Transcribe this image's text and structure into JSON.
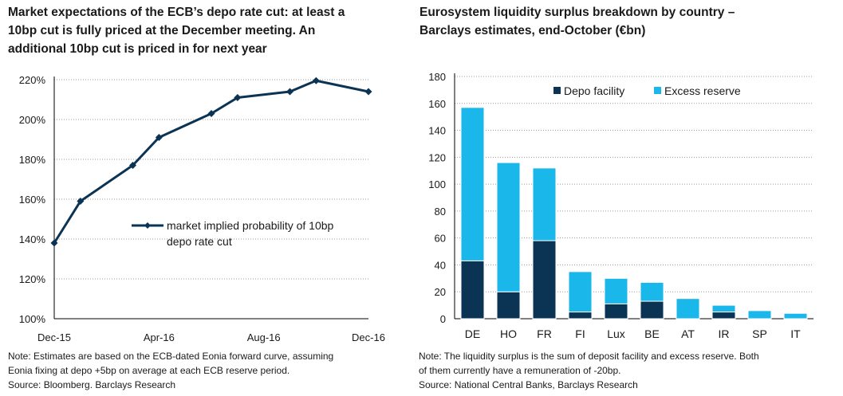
{
  "left": {
    "title_lines": [
      "Market expectations of the ECB’s depo rate cut: at least a",
      "10bp cut is fully priced at the December meeting. An",
      "additional 10bp cut is priced in for next year"
    ],
    "note_lines": [
      "Note: Estimates are based on the ECB-dated Eonia forward curve, assuming",
      "Eonia fixing at depo +5bp on average at each ECB reserve period.",
      "Source: Bloomberg. Barclays Research"
    ]
  },
  "right": {
    "title_lines": [
      "Eurosystem liquidity surplus breakdown by country –",
      "Barclays estimates, end-October (€bn)"
    ],
    "note_lines": [
      "Note: The liquidity surplus is the sum of deposit facility and excess reserve. Both",
      "of them currently have a remuneration of -20bp.",
      "Source: National Central Banks, Barclays Research"
    ]
  },
  "colors": {
    "line": "#0b3354",
    "depo": "#0b3354",
    "excess": "#1ab7ea",
    "axis": "#000000",
    "grid": "#9a9a9a"
  },
  "chart_data": [
    {
      "type": "line",
      "title": "Market expectations of the ECB’s depo rate cut",
      "y_unit": "%",
      "ylim": [
        100,
        220
      ],
      "y_ticks": [
        100,
        120,
        140,
        160,
        180,
        200,
        220
      ],
      "x_range_months": [
        0,
        12
      ],
      "x_ticks": [
        {
          "month": 0,
          "label": "Dec-15"
        },
        {
          "month": 4,
          "label": "Apr-16"
        },
        {
          "month": 8,
          "label": "Aug-16"
        },
        {
          "month": 12,
          "label": "Dec-16"
        }
      ],
      "series": [
        {
          "name_lines": [
            "market implied probability of 10bp",
            "depo rate cut"
          ],
          "points": [
            {
              "month": 0,
              "value": 138
            },
            {
              "month": 1,
              "value": 159
            },
            {
              "month": 3,
              "value": 177
            },
            {
              "month": 4,
              "value": 191
            },
            {
              "month": 6,
              "value": 203
            },
            {
              "month": 7,
              "value": 211
            },
            {
              "month": 9,
              "value": 214
            },
            {
              "month": 10,
              "value": 219.5
            },
            {
              "month": 12,
              "value": 214
            }
          ]
        }
      ],
      "grid": true,
      "legend_position": "center-right"
    },
    {
      "type": "bar",
      "stacked": true,
      "title": "Eurosystem liquidity surplus breakdown by country",
      "ylim": [
        0,
        180
      ],
      "y_ticks": [
        0,
        20,
        40,
        60,
        80,
        100,
        120,
        140,
        160,
        180
      ],
      "categories": [
        "DE",
        "HO",
        "FR",
        "FI",
        "Lux",
        "BE",
        "AT",
        "IR",
        "SP",
        "IT"
      ],
      "series": [
        {
          "name": "Depo facility",
          "values": [
            43,
            20,
            58,
            5,
            11,
            13,
            0,
            5,
            0,
            0
          ]
        },
        {
          "name": "Excess reserve",
          "values": [
            114,
            96,
            54,
            30,
            19,
            14,
            15,
            5,
            6,
            4
          ]
        }
      ],
      "grid": true,
      "legend_position": "top"
    }
  ]
}
